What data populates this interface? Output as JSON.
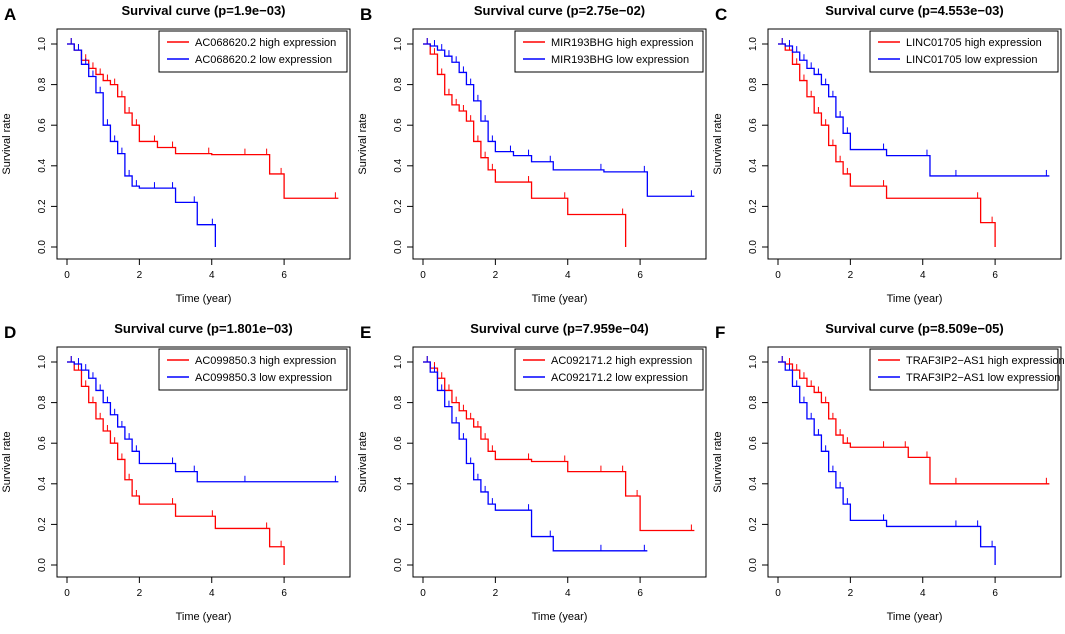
{
  "figure": {
    "xlabel": "Time (year)",
    "ylabel": "Survival rate"
  },
  "chart_data": [
    {
      "type": "line",
      "panel": "A",
      "title": "Survival curve (p=1.9e−03)",
      "xlabel": "Time (year)",
      "ylabel": "Survival rate",
      "xlim": [
        0,
        7.5
      ],
      "ylim": [
        0,
        1
      ],
      "xticks": [
        "0",
        "2",
        "4",
        "6"
      ],
      "yticks": [
        "0.0",
        "0.2",
        "0.4",
        "0.6",
        "0.8",
        "1.0"
      ],
      "legend_position": "top-right",
      "series": [
        {
          "name": "AC068620.2 high expression",
          "color": "#ff0000",
          "x": [
            0,
            0.2,
            0.4,
            0.6,
            0.8,
            1.0,
            1.2,
            1.4,
            1.6,
            1.8,
            2.0,
            2.5,
            3.0,
            4.0,
            5.0,
            5.6,
            6.0,
            7.5
          ],
          "y": [
            1.0,
            0.97,
            0.92,
            0.88,
            0.85,
            0.82,
            0.8,
            0.74,
            0.66,
            0.6,
            0.52,
            0.49,
            0.46,
            0.455,
            0.455,
            0.36,
            0.24,
            0.24
          ]
        },
        {
          "name": "AC068620.2 low expression",
          "color": "#0000ff",
          "x": [
            0,
            0.2,
            0.4,
            0.6,
            0.8,
            1.0,
            1.2,
            1.4,
            1.6,
            1.8,
            2.0,
            2.5,
            3.0,
            3.6,
            4.1
          ],
          "y": [
            1.0,
            0.97,
            0.9,
            0.84,
            0.76,
            0.6,
            0.52,
            0.46,
            0.35,
            0.3,
            0.29,
            0.29,
            0.22,
            0.11,
            0.0
          ]
        }
      ]
    },
    {
      "type": "line",
      "panel": "B",
      "title": "Survival curve (p=2.75e−02)",
      "xlabel": "Time (year)",
      "ylabel": "Survival rate",
      "xlim": [
        0,
        7.5
      ],
      "ylim": [
        0,
        1
      ],
      "xticks": [
        "0",
        "2",
        "4",
        "6"
      ],
      "yticks": [
        "0.0",
        "0.2",
        "0.4",
        "0.6",
        "0.8",
        "1.0"
      ],
      "legend_position": "top-right",
      "series": [
        {
          "name": "MIR193BHG high expression",
          "color": "#ff0000",
          "x": [
            0,
            0.2,
            0.4,
            0.6,
            0.8,
            1.0,
            1.2,
            1.4,
            1.6,
            1.8,
            2.0,
            3.0,
            4.0,
            5.6
          ],
          "y": [
            1.0,
            0.95,
            0.85,
            0.75,
            0.7,
            0.67,
            0.62,
            0.52,
            0.44,
            0.38,
            0.32,
            0.24,
            0.16,
            0.0
          ]
        },
        {
          "name": "MIR193BHG low expression",
          "color": "#0000ff",
          "x": [
            0,
            0.2,
            0.4,
            0.6,
            0.8,
            1.0,
            1.2,
            1.4,
            1.6,
            1.8,
            2.0,
            2.5,
            3.0,
            3.6,
            5.0,
            6.2,
            7.5
          ],
          "y": [
            1.0,
            0.99,
            0.97,
            0.94,
            0.91,
            0.86,
            0.8,
            0.72,
            0.62,
            0.52,
            0.47,
            0.45,
            0.42,
            0.38,
            0.37,
            0.25,
            0.25
          ]
        }
      ]
    },
    {
      "type": "line",
      "panel": "C",
      "title": "Survival curve (p=4.553e−03)",
      "xlabel": "Time (year)",
      "ylabel": "Survival rate",
      "xlim": [
        0,
        7.5
      ],
      "ylim": [
        0,
        1
      ],
      "xticks": [
        "0",
        "2",
        "4",
        "6"
      ],
      "yticks": [
        "0.0",
        "0.2",
        "0.4",
        "0.6",
        "0.8",
        "1.0"
      ],
      "legend_position": "top-right",
      "series": [
        {
          "name": "LINC01705 high expression",
          "color": "#ff0000",
          "x": [
            0,
            0.2,
            0.4,
            0.6,
            0.8,
            1.0,
            1.2,
            1.4,
            1.6,
            1.8,
            2.0,
            3.0,
            5.6,
            6.0
          ],
          "y": [
            1.0,
            0.97,
            0.9,
            0.82,
            0.74,
            0.66,
            0.6,
            0.5,
            0.42,
            0.36,
            0.3,
            0.24,
            0.12,
            0.0
          ]
        },
        {
          "name": "LINC01705 low expression",
          "color": "#0000ff",
          "x": [
            0,
            0.2,
            0.4,
            0.6,
            0.8,
            1.0,
            1.2,
            1.4,
            1.6,
            1.8,
            2.0,
            3.0,
            4.2,
            5.0,
            7.5
          ],
          "y": [
            1.0,
            0.99,
            0.96,
            0.92,
            0.88,
            0.85,
            0.8,
            0.74,
            0.64,
            0.56,
            0.48,
            0.45,
            0.35,
            0.35,
            0.35
          ]
        }
      ]
    },
    {
      "type": "line",
      "panel": "D",
      "title": "Survival curve (p=1.801e−03)",
      "xlabel": "Time (year)",
      "ylabel": "Survival rate",
      "xlim": [
        0,
        7.5
      ],
      "ylim": [
        0,
        1
      ],
      "xticks": [
        "0",
        "2",
        "4",
        "6"
      ],
      "yticks": [
        "0.0",
        "0.2",
        "0.4",
        "0.6",
        "0.8",
        "1.0"
      ],
      "legend_position": "top-right",
      "series": [
        {
          "name": "AC099850.3 high expression",
          "color": "#ff0000",
          "x": [
            0,
            0.2,
            0.4,
            0.6,
            0.8,
            1.0,
            1.2,
            1.4,
            1.6,
            1.8,
            2.0,
            3.0,
            4.1,
            5.6,
            6.0
          ],
          "y": [
            1.0,
            0.96,
            0.88,
            0.8,
            0.72,
            0.66,
            0.6,
            0.52,
            0.42,
            0.34,
            0.3,
            0.24,
            0.18,
            0.09,
            0.0
          ]
        },
        {
          "name": "AC099850.3 low expression",
          "color": "#0000ff",
          "x": [
            0,
            0.2,
            0.4,
            0.6,
            0.8,
            1.0,
            1.2,
            1.4,
            1.6,
            1.8,
            2.0,
            3.0,
            3.6,
            5.0,
            7.5
          ],
          "y": [
            1.0,
            0.99,
            0.96,
            0.92,
            0.86,
            0.8,
            0.74,
            0.68,
            0.62,
            0.56,
            0.5,
            0.46,
            0.41,
            0.41,
            0.41
          ]
        }
      ]
    },
    {
      "type": "line",
      "panel": "E",
      "title": "Survival curve (p=7.959e−04)",
      "xlabel": "Time (year)",
      "ylabel": "Survival rate",
      "xlim": [
        0,
        7.5
      ],
      "ylim": [
        0,
        1
      ],
      "xticks": [
        "0",
        "2",
        "4",
        "6"
      ],
      "yticks": [
        "0.0",
        "0.2",
        "0.4",
        "0.6",
        "0.8",
        "1.0"
      ],
      "legend_position": "top-right",
      "series": [
        {
          "name": "AC092171.2 high expression",
          "color": "#ff0000",
          "x": [
            0,
            0.2,
            0.4,
            0.6,
            0.8,
            1.0,
            1.2,
            1.4,
            1.6,
            1.8,
            2.0,
            3.0,
            4.0,
            5.0,
            5.6,
            6.0,
            7.5
          ],
          "y": [
            1.0,
            0.97,
            0.92,
            0.86,
            0.8,
            0.76,
            0.72,
            0.68,
            0.62,
            0.56,
            0.52,
            0.51,
            0.46,
            0.46,
            0.34,
            0.17,
            0.17
          ]
        },
        {
          "name": "AC092171.2 low expression",
          "color": "#0000ff",
          "x": [
            0,
            0.2,
            0.4,
            0.6,
            0.8,
            1.0,
            1.2,
            1.4,
            1.6,
            1.8,
            2.0,
            3.0,
            3.6,
            5.0,
            6.2
          ],
          "y": [
            1.0,
            0.95,
            0.86,
            0.78,
            0.7,
            0.62,
            0.5,
            0.42,
            0.36,
            0.3,
            0.27,
            0.14,
            0.07,
            0.07,
            0.07
          ]
        }
      ]
    },
    {
      "type": "line",
      "panel": "F",
      "title": "Survival curve (p=8.509e−05)",
      "xlabel": "Time (year)",
      "ylabel": "Survival rate",
      "xlim": [
        0,
        7.5
      ],
      "ylim": [
        0,
        1
      ],
      "xticks": [
        "0",
        "2",
        "4",
        "6"
      ],
      "yticks": [
        "0.0",
        "0.2",
        "0.4",
        "0.6",
        "0.8",
        "1.0"
      ],
      "legend_position": "top-right",
      "series": [
        {
          "name": "TRAF3IP2−AS1 high expression",
          "color": "#ff0000",
          "x": [
            0,
            0.2,
            0.4,
            0.6,
            0.8,
            1.0,
            1.2,
            1.4,
            1.6,
            1.8,
            2.0,
            3.0,
            3.6,
            4.2,
            5.0,
            7.5
          ],
          "y": [
            1.0,
            0.99,
            0.96,
            0.92,
            0.88,
            0.85,
            0.8,
            0.72,
            0.64,
            0.6,
            0.58,
            0.58,
            0.53,
            0.4,
            0.4,
            0.4
          ]
        },
        {
          "name": "TRAF3IP2−AS1 low expression",
          "color": "#0000ff",
          "x": [
            0,
            0.2,
            0.4,
            0.6,
            0.8,
            1.0,
            1.2,
            1.4,
            1.6,
            1.8,
            2.0,
            3.0,
            5.0,
            5.6,
            6.0
          ],
          "y": [
            1.0,
            0.96,
            0.88,
            0.8,
            0.72,
            0.64,
            0.56,
            0.46,
            0.38,
            0.3,
            0.22,
            0.19,
            0.19,
            0.09,
            0.0
          ]
        }
      ]
    }
  ]
}
